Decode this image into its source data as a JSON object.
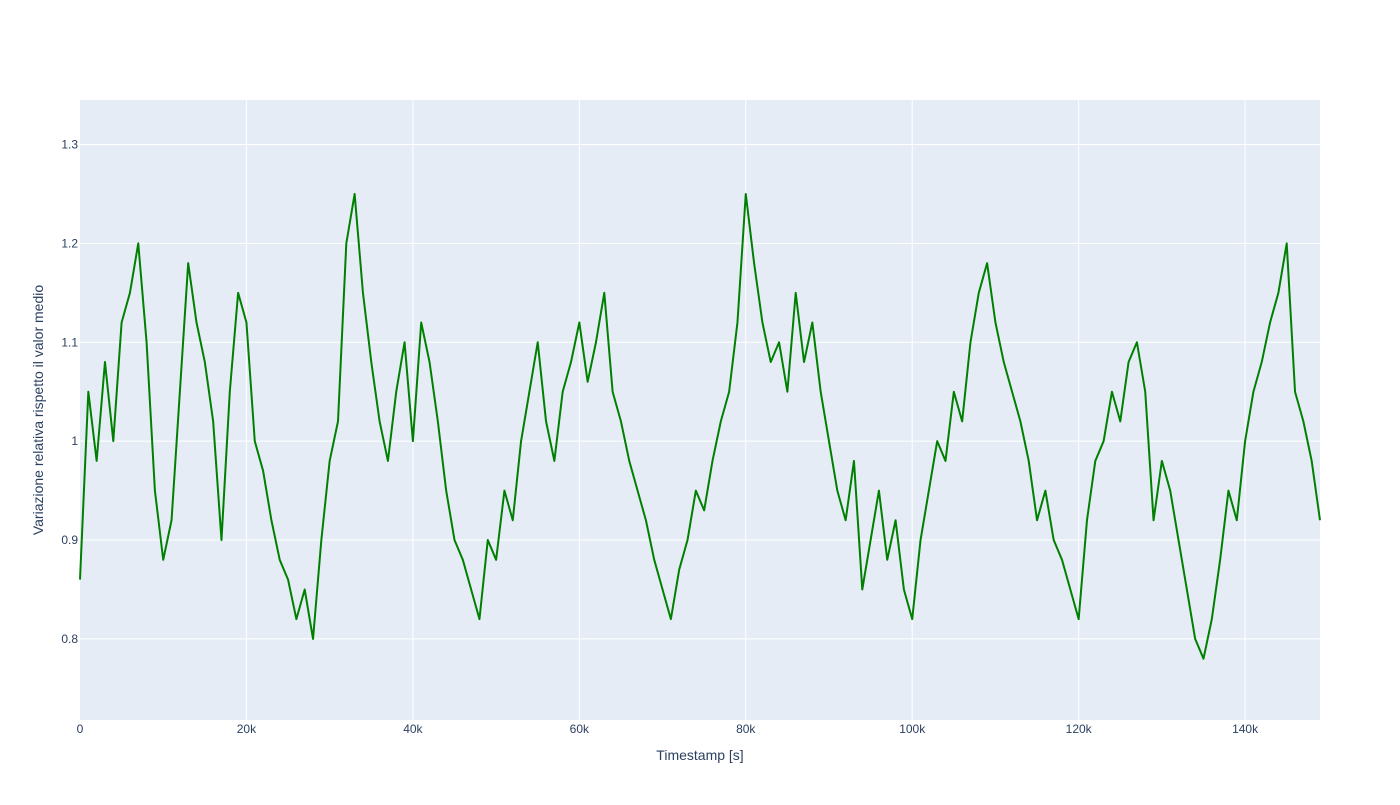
{
  "chart_data": {
    "type": "line",
    "title": "",
    "xlabel": "Timestamp [s]",
    "ylabel": "Variazione relativa rispetto il valor medio",
    "xlim": [
      0,
      149000
    ],
    "ylim": [
      0.718,
      1.345
    ],
    "x_ticks": [
      {
        "value": 0,
        "label": "0"
      },
      {
        "value": 20000,
        "label": "20k"
      },
      {
        "value": 40000,
        "label": "40k"
      },
      {
        "value": 60000,
        "label": "60k"
      },
      {
        "value": 80000,
        "label": "80k"
      },
      {
        "value": 100000,
        "label": "100k"
      },
      {
        "value": 120000,
        "label": "120k"
      },
      {
        "value": 140000,
        "label": "140k"
      }
    ],
    "y_ticks": [
      {
        "value": 0.8,
        "label": "0.8"
      },
      {
        "value": 0.9,
        "label": "0.9"
      },
      {
        "value": 1.0,
        "label": "1"
      },
      {
        "value": 1.1,
        "label": "1.1"
      },
      {
        "value": 1.2,
        "label": "1.2"
      },
      {
        "value": 1.3,
        "label": "1.3"
      }
    ],
    "grid": true,
    "legend": "none",
    "colors": {
      "line": "#008000",
      "plot_bg": "#e5ecf6",
      "grid": "#ffffff",
      "text": "#2a3f5f"
    },
    "series": [
      {
        "x": [
          0,
          1000,
          2000,
          3000,
          4000,
          5000,
          6000,
          7000,
          8000,
          9000,
          10000,
          11000,
          12000,
          13000,
          14000,
          15000,
          16000,
          17000,
          18000,
          19000,
          20000,
          21000,
          22000,
          23000,
          24000,
          25000,
          26000,
          27000,
          28000,
          29000,
          30000,
          31000,
          32000,
          33000,
          34000,
          35000,
          36000,
          37000,
          38000,
          39000,
          40000,
          41000,
          42000,
          43000,
          44000,
          45000,
          46000,
          47000,
          48000,
          49000,
          50000,
          51000,
          52000,
          53000,
          54000,
          55000,
          56000,
          57000,
          58000,
          59000,
          60000,
          61000,
          62000,
          63000,
          64000,
          65000,
          66000,
          67000,
          68000,
          69000,
          70000,
          71000,
          72000,
          73000,
          74000,
          75000,
          76000,
          77000,
          78000,
          79000,
          80000,
          81000,
          82000,
          83000,
          84000,
          85000,
          86000,
          87000,
          88000,
          89000,
          90000,
          91000,
          92000,
          93000,
          94000,
          95000,
          96000,
          97000,
          98000,
          99000,
          100000,
          101000,
          102000,
          103000,
          104000,
          105000,
          106000,
          107000,
          108000,
          109000,
          110000,
          111000,
          112000,
          113000,
          114000,
          115000,
          116000,
          117000,
          118000,
          119000,
          120000,
          121000,
          122000,
          123000,
          124000,
          125000,
          126000,
          127000,
          128000,
          129000,
          130000,
          131000,
          132000,
          133000,
          134000,
          135000,
          136000,
          137000,
          138000,
          139000,
          140000,
          141000,
          142000,
          143000,
          144000,
          145000,
          146000,
          147000,
          148000,
          149000
        ],
        "y": [
          0.86,
          1.05,
          0.98,
          1.08,
          1.0,
          1.12,
          1.15,
          1.2,
          1.1,
          0.95,
          0.88,
          0.92,
          1.05,
          1.18,
          1.12,
          1.08,
          1.02,
          0.9,
          1.05,
          1.15,
          1.12,
          1.0,
          0.97,
          0.92,
          0.88,
          0.86,
          0.82,
          0.85,
          0.8,
          0.9,
          0.98,
          1.02,
          1.2,
          1.25,
          1.15,
          1.08,
          1.02,
          0.98,
          1.05,
          1.1,
          1.0,
          1.12,
          1.08,
          1.02,
          0.95,
          0.9,
          0.88,
          0.85,
          0.82,
          0.9,
          0.88,
          0.95,
          0.92,
          1.0,
          1.05,
          1.1,
          1.02,
          0.98,
          1.05,
          1.08,
          1.12,
          1.06,
          1.1,
          1.15,
          1.05,
          1.02,
          0.98,
          0.95,
          0.92,
          0.88,
          0.85,
          0.82,
          0.87,
          0.9,
          0.95,
          0.93,
          0.98,
          1.02,
          1.05,
          1.12,
          1.25,
          1.18,
          1.12,
          1.08,
          1.1,
          1.05,
          1.15,
          1.08,
          1.12,
          1.05,
          1.0,
          0.95,
          0.92,
          0.98,
          0.85,
          0.9,
          0.95,
          0.88,
          0.92,
          0.85,
          0.82,
          0.9,
          0.95,
          1.0,
          0.98,
          1.05,
          1.02,
          1.1,
          1.15,
          1.18,
          1.12,
          1.08,
          1.05,
          1.02,
          0.98,
          0.92,
          0.95,
          0.9,
          0.88,
          0.85,
          0.82,
          0.92,
          0.98,
          1.0,
          1.05,
          1.02,
          1.08,
          1.1,
          1.05,
          0.92,
          0.98,
          0.95,
          0.9,
          0.85,
          0.8,
          0.78,
          0.82,
          0.88,
          0.95,
          0.92,
          1.0,
          1.05,
          1.08,
          1.12,
          1.15,
          1.2,
          1.05,
          1.02,
          0.98,
          0.92
        ]
      }
    ]
  }
}
